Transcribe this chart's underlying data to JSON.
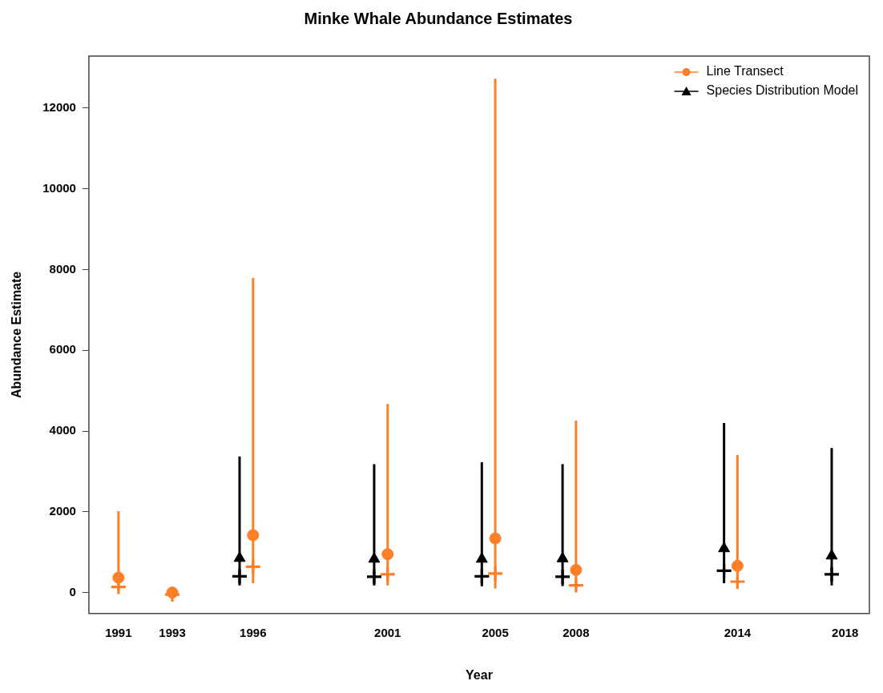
{
  "chart_data": {
    "type": "scatter",
    "title": "Minke Whale Abundance Estimates",
    "xlabel": "Year",
    "ylabel": "Abundance Estimate",
    "xlim": [
      1989.9,
      2018.9
    ],
    "xticks": [
      1991,
      1993,
      1996,
      2001,
      2005,
      2008,
      2014,
      2018
    ],
    "ylim": [
      -520,
      13290
    ],
    "yticks": [
      0,
      2000,
      4000,
      6000,
      8000,
      10000,
      12000
    ],
    "grid": false,
    "legend": "top right",
    "series": [
      {
        "name": "Line Transect",
        "color": "#ff7f27",
        "marker": "circle",
        "x": [
          1991,
          1993,
          1996,
          2001,
          2005,
          2008,
          2014
        ],
        "values": [
          370,
          0,
          1420,
          950,
          1340,
          560,
          660
        ],
        "errors": [
          [
            60,
            2015
          ],
          null,
          [
            230,
            7790
          ],
          [
            175,
            4670
          ],
          [
            100,
            12730
          ],
          [
            60,
            4260
          ],
          [
            100,
            3410
          ]
        ]
      },
      {
        "name": "Species Distribution Model",
        "color": "#000000",
        "marker": "triangle",
        "x": [
          1995.5,
          2000.5,
          2004.5,
          2007.5,
          2013.5,
          2017.5
        ],
        "values": [
          850,
          830,
          830,
          840,
          1090,
          910
        ],
        "errors": [
          [
            175,
            3370
          ],
          [
            175,
            3180
          ],
          [
            155,
            3230
          ],
          [
            160,
            3180
          ],
          [
            230,
            4200
          ],
          [
            175,
            3580
          ]
        ]
      },
      {
        "color": "#ff7f27",
        "marker": "cross",
        "x": [
          1991,
          1993,
          1996,
          2001,
          2005,
          2008,
          2014
        ],
        "values": [
          140,
          -50,
          640,
          450,
          470,
          180,
          270
        ]
      },
      {
        "color": "#000000",
        "marker": "cross",
        "x": [
          1995.5,
          2000.5,
          2004.5,
          2007.5,
          2013.5,
          2017.5
        ],
        "values": [
          400,
          390,
          400,
          390,
          540,
          450
        ]
      }
    ]
  }
}
